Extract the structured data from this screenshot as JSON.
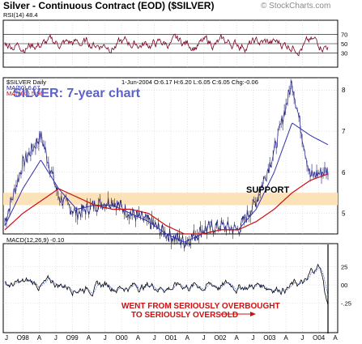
{
  "header": {
    "title": "Silver - Continuous Contract (EOD) ($SILVER)",
    "copyright": "© StockCharts.com"
  },
  "rsi": {
    "label": "RSI(14) 48.4",
    "levels": [
      "70",
      "50",
      "30"
    ]
  },
  "price": {
    "symbol_label": "$SILVER Daily",
    "ma50_label": "MA(50) 6.67",
    "ma200_label": "MA(200) 5.96",
    "date_info": "1-Jun-2004 O:6.17 H:6.20 L:6.05 C:6.05 Chg:-0.06",
    "main_title": "SILVER: 7-year chart",
    "support_label": "SUPPORT",
    "y_tick_labels": [
      "8",
      "7",
      "6",
      "5"
    ]
  },
  "macd": {
    "label": "MACD(12,26,9) -0.10",
    "y_tick_labels": [
      "25",
      "00",
      "-.25"
    ],
    "annotation_line1": "WENT FROM SERIOUSLY OVERBOUGHT",
    "annotation_line2": "TO SERIOUSLY OVERSOLD"
  },
  "x_axis": {
    "labels": [
      "J",
      "O98",
      "A",
      "J",
      "O99",
      "A",
      "J",
      "O00",
      "A",
      "J",
      "O01",
      "A",
      "J",
      "O02",
      "A",
      "J",
      "O03",
      "A",
      "J",
      "O04",
      "A"
    ]
  },
  "colors": {
    "price": "#1a1a80",
    "ma50": "#3030b0",
    "ma200": "#cc1010",
    "rsi_line": "#7a0020",
    "support_band": "#fbe2b8",
    "annotation": "#d01010",
    "grid": "#c8c8c8"
  },
  "chart_data": {
    "type": "line",
    "title": "SILVER: 7-year chart",
    "ylim": [
      4.5,
      8.3
    ],
    "support_band": [
      5.2,
      5.5
    ],
    "x": [
      "1997-06",
      "1997-12",
      "1998-02",
      "1998-06",
      "1998-12",
      "1999-06",
      "1999-12",
      "2000-06",
      "2000-12",
      "2001-06",
      "2001-11",
      "2002-06",
      "2002-12",
      "2003-06",
      "2003-12",
      "2004-02",
      "2004-04",
      "2004-05",
      "2004-06"
    ],
    "series": [
      {
        "name": "$SILVER Daily",
        "values": [
          4.8,
          6.2,
          6.9,
          5.4,
          5.0,
          5.2,
          5.3,
          5.0,
          4.8,
          4.5,
          4.3,
          4.6,
          4.7,
          4.6,
          5.3,
          6.5,
          8.2,
          5.9,
          6.05
        ]
      },
      {
        "name": "MA(50)",
        "values": [
          4.7,
          5.6,
          6.3,
          5.6,
          5.1,
          5.2,
          5.2,
          5.0,
          4.8,
          4.5,
          4.3,
          4.5,
          4.6,
          4.6,
          5.1,
          6.0,
          7.2,
          6.9,
          6.67
        ]
      },
      {
        "name": "MA(200)",
        "values": [
          4.6,
          5.0,
          5.3,
          5.6,
          5.4,
          5.2,
          5.1,
          5.1,
          5.0,
          4.7,
          4.5,
          4.5,
          4.6,
          4.6,
          4.8,
          5.1,
          5.5,
          5.8,
          5.96
        ]
      }
    ]
  }
}
